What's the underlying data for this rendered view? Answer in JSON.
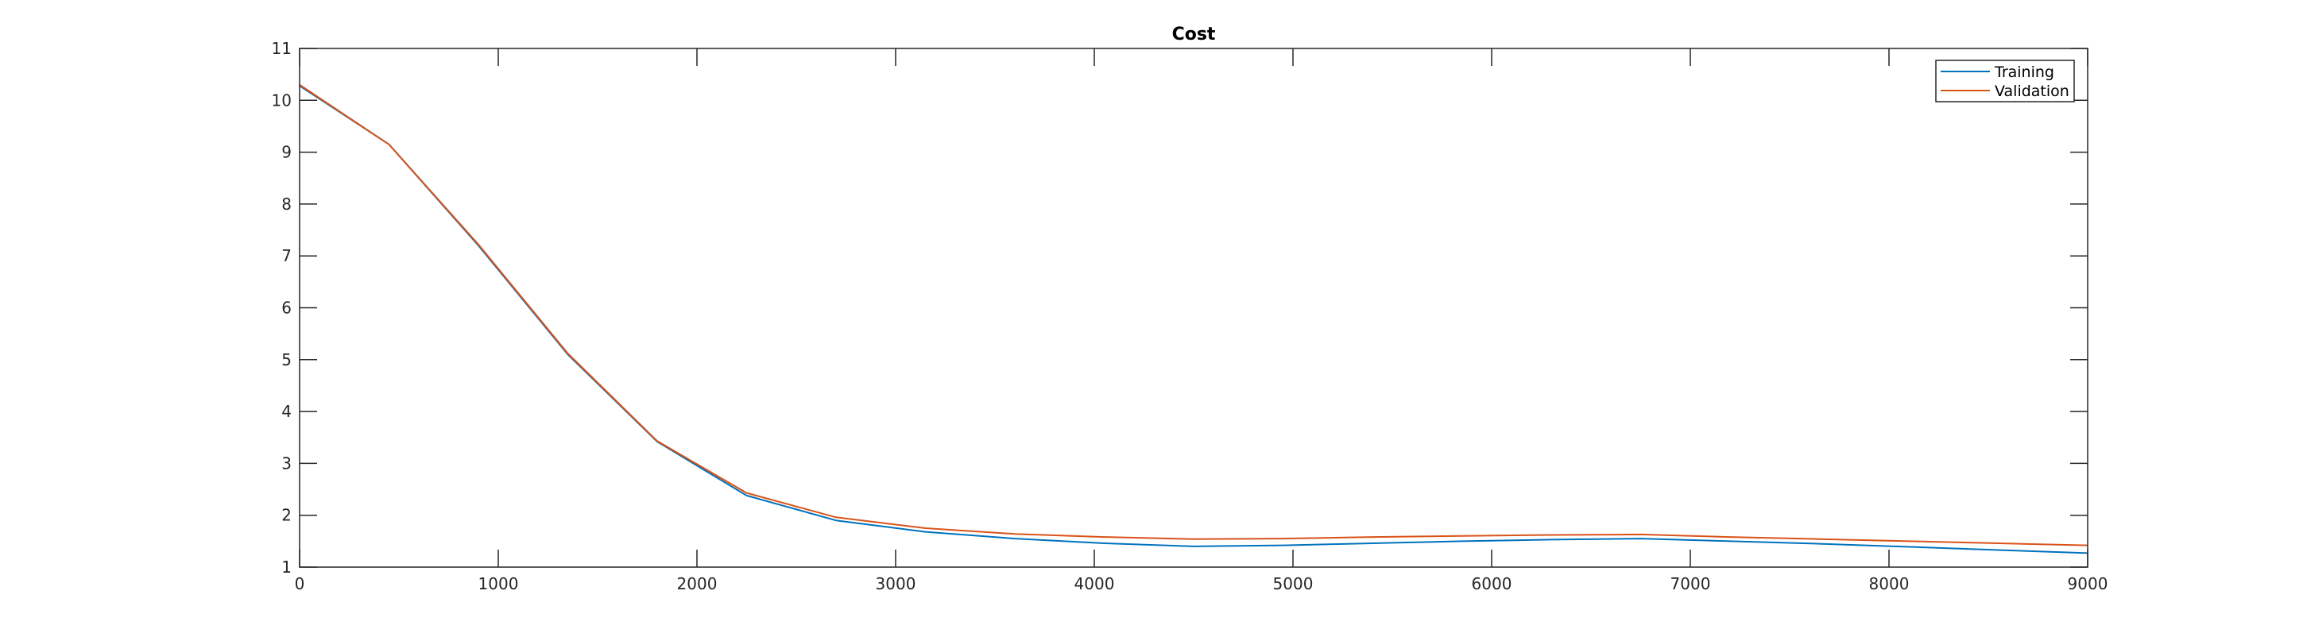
{
  "chart_data": {
    "type": "line",
    "title": "Cost",
    "xlabel": "",
    "ylabel": "",
    "xlim": [
      0,
      9000
    ],
    "ylim": [
      1,
      11
    ],
    "xticks": [
      0,
      1000,
      2000,
      3000,
      4000,
      5000,
      6000,
      7000,
      8000,
      9000
    ],
    "yticks": [
      1,
      2,
      3,
      4,
      5,
      6,
      7,
      8,
      9,
      10,
      11
    ],
    "grid": false,
    "legend_position": "top-right",
    "series": [
      {
        "name": "Training",
        "color": "#0072BD",
        "x": [
          0,
          450,
          900,
          1350,
          1800,
          2250,
          2700,
          3150,
          3600,
          4050,
          4500,
          4950,
          5400,
          5850,
          6300,
          6750,
          7200,
          7650,
          8100,
          8550,
          9000
        ],
        "y": [
          10.28,
          9.15,
          7.2,
          5.1,
          3.42,
          2.38,
          1.9,
          1.68,
          1.55,
          1.46,
          1.4,
          1.42,
          1.46,
          1.5,
          1.53,
          1.55,
          1.5,
          1.45,
          1.39,
          1.33,
          1.27
        ]
      },
      {
        "name": "Validation",
        "color": "#D95319",
        "x": [
          0,
          450,
          900,
          1350,
          1800,
          2250,
          2700,
          3150,
          3600,
          4050,
          4500,
          4950,
          5400,
          5850,
          6300,
          6750,
          7200,
          7650,
          8100,
          8550,
          9000
        ],
        "y": [
          10.3,
          9.15,
          7.22,
          5.12,
          3.43,
          2.43,
          1.96,
          1.75,
          1.64,
          1.58,
          1.54,
          1.55,
          1.58,
          1.6,
          1.62,
          1.63,
          1.58,
          1.54,
          1.5,
          1.46,
          1.42
        ]
      }
    ]
  }
}
